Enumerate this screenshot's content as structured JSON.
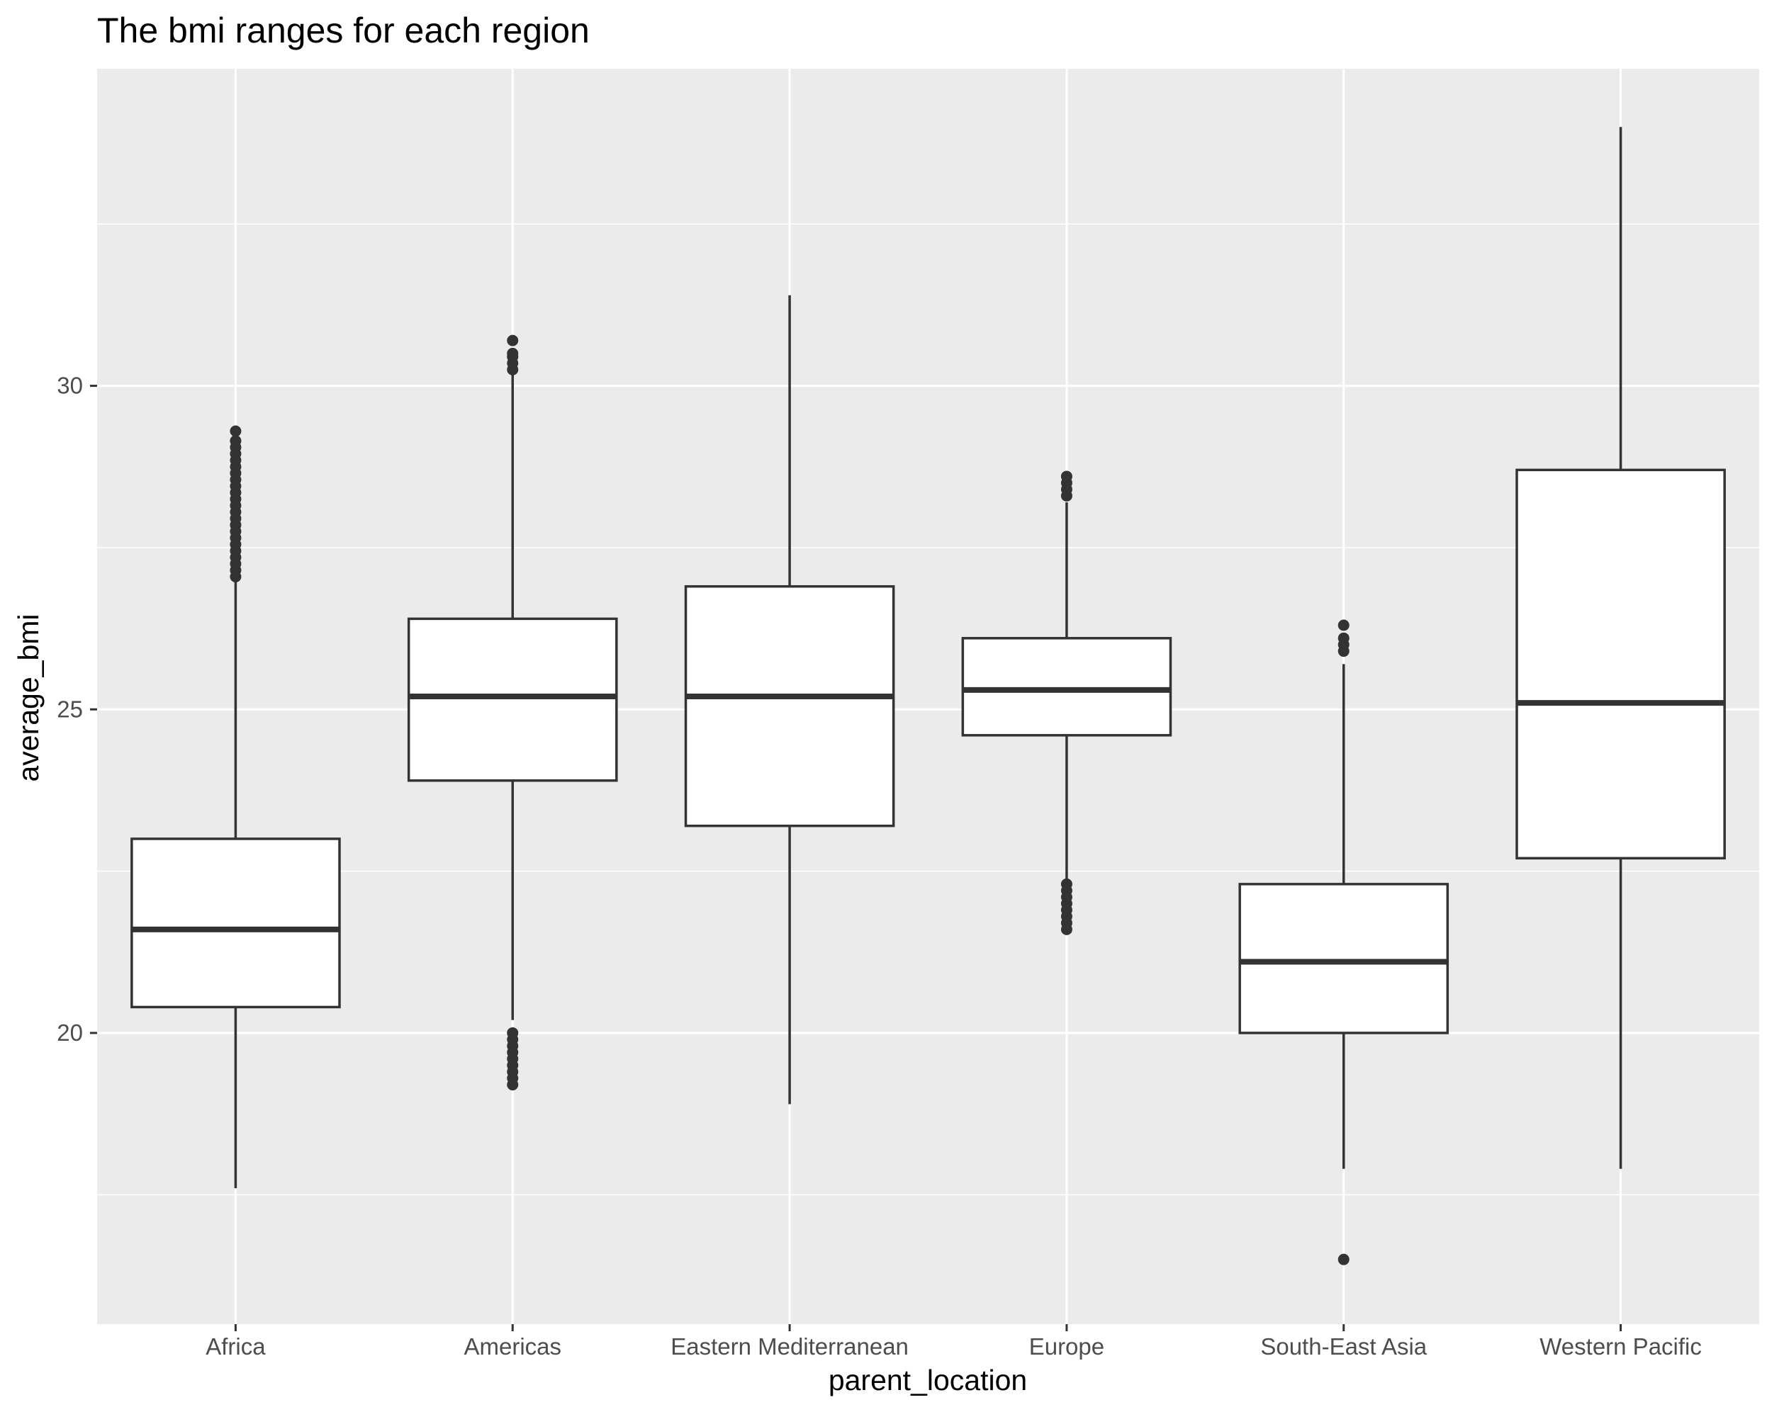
{
  "chart_data": {
    "type": "boxplot",
    "title": "The bmi ranges for each region",
    "xlabel": "parent_location",
    "ylabel": "average_bmi",
    "categories": [
      "Africa",
      "Americas",
      "Eastern Mediterranean",
      "Europe",
      "South-East Asia",
      "Western Pacific"
    ],
    "ylim": [
      15.5,
      34.9
    ],
    "yticks": [
      20,
      25,
      30
    ],
    "grid": true,
    "legend": "none",
    "colors": {
      "panel": "#ebebeb",
      "grid": "#ffffff",
      "box_fill": "#ffffff",
      "stroke": "#333333",
      "tick_text": "#4d4d4d",
      "text": "#000000"
    },
    "boxes": [
      {
        "category": "Africa",
        "whisker_low": 17.6,
        "q1": 20.4,
        "median": 21.6,
        "q3": 23.0,
        "whisker_high": 27.0,
        "outliers": [
          27.05,
          27.15,
          27.25,
          27.35,
          27.45,
          27.55,
          27.65,
          27.75,
          27.85,
          27.95,
          28.05,
          28.15,
          28.25,
          28.35,
          28.45,
          28.55,
          28.65,
          28.75,
          28.85,
          28.95,
          29.05,
          29.15,
          29.3
        ]
      },
      {
        "category": "Americas",
        "whisker_low": 20.2,
        "q1": 23.9,
        "median": 25.2,
        "q3": 26.4,
        "whisker_high": 30.2,
        "outliers": [
          19.2,
          19.3,
          19.4,
          19.5,
          19.6,
          19.7,
          19.8,
          19.9,
          20.0,
          30.25,
          30.35,
          30.45,
          30.5,
          30.7
        ]
      },
      {
        "category": "Eastern Mediterranean",
        "whisker_low": 18.9,
        "q1": 23.2,
        "median": 25.2,
        "q3": 26.9,
        "whisker_high": 31.4,
        "outliers": []
      },
      {
        "category": "Europe",
        "whisker_low": 22.2,
        "q1": 24.6,
        "median": 25.3,
        "q3": 26.1,
        "whisker_high": 28.2,
        "outliers": [
          21.6,
          21.7,
          21.8,
          21.9,
          22.0,
          22.1,
          22.2,
          22.3,
          28.3,
          28.4,
          28.5,
          28.6
        ]
      },
      {
        "category": "South-East Asia",
        "whisker_low": 17.9,
        "q1": 20.0,
        "median": 21.1,
        "q3": 22.3,
        "whisker_high": 25.7,
        "outliers": [
          16.5,
          25.9,
          26.0,
          26.1,
          26.3
        ]
      },
      {
        "category": "Western Pacific",
        "whisker_low": 17.9,
        "q1": 22.7,
        "median": 25.1,
        "q3": 28.7,
        "whisker_high": 34.0,
        "outliers": []
      }
    ]
  }
}
